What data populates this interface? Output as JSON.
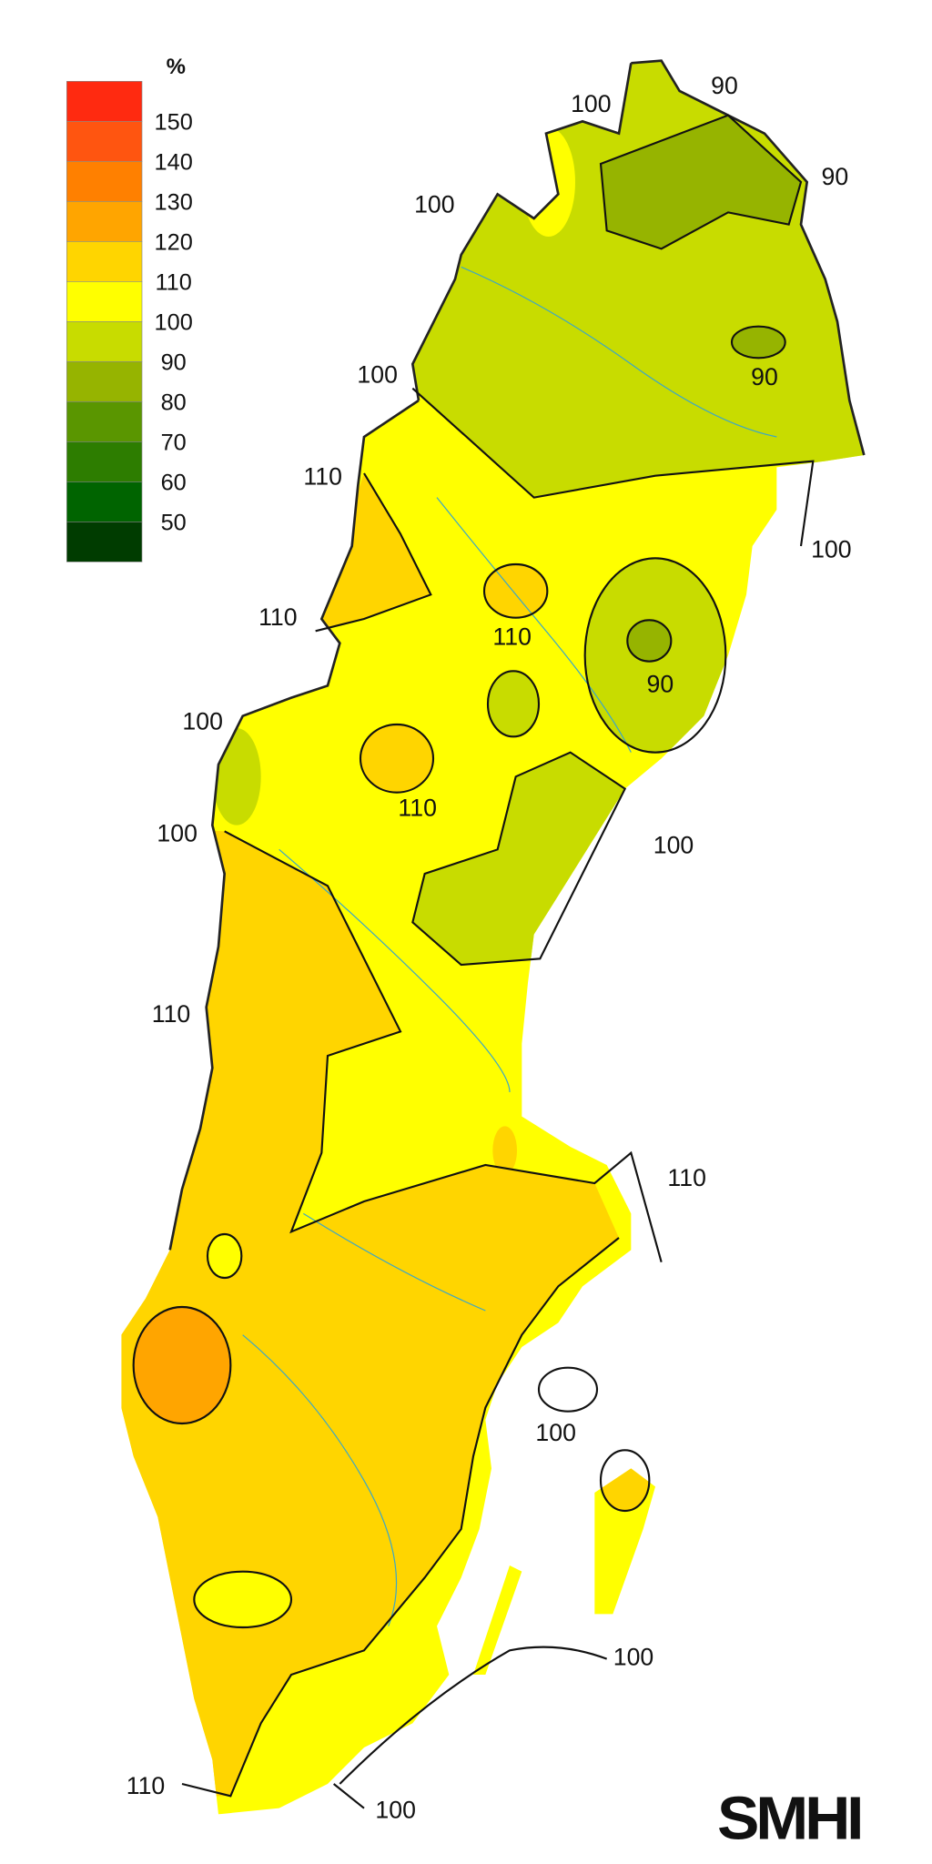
{
  "legend": {
    "unit": "%",
    "colors": [
      "#ff2a10",
      "#ff5510",
      "#ff8000",
      "#ffa500",
      "#ffd500",
      "#ffff00",
      "#c8dc00",
      "#96b400",
      "#5a9600",
      "#2d7d00",
      "#006400",
      "#003c00"
    ],
    "labels": [
      "150",
      "140",
      "130",
      "120",
      "110",
      "100",
      "90",
      "80",
      "70",
      "60",
      "50"
    ]
  },
  "contour_labels": [
    "100",
    "90",
    "90",
    "100",
    "100",
    "90",
    "110",
    "100",
    "110",
    "110",
    "90",
    "100",
    "110",
    "100",
    "100",
    "110",
    "110",
    "100",
    "100",
    "110",
    "100"
  ],
  "logo": "SMHI"
}
